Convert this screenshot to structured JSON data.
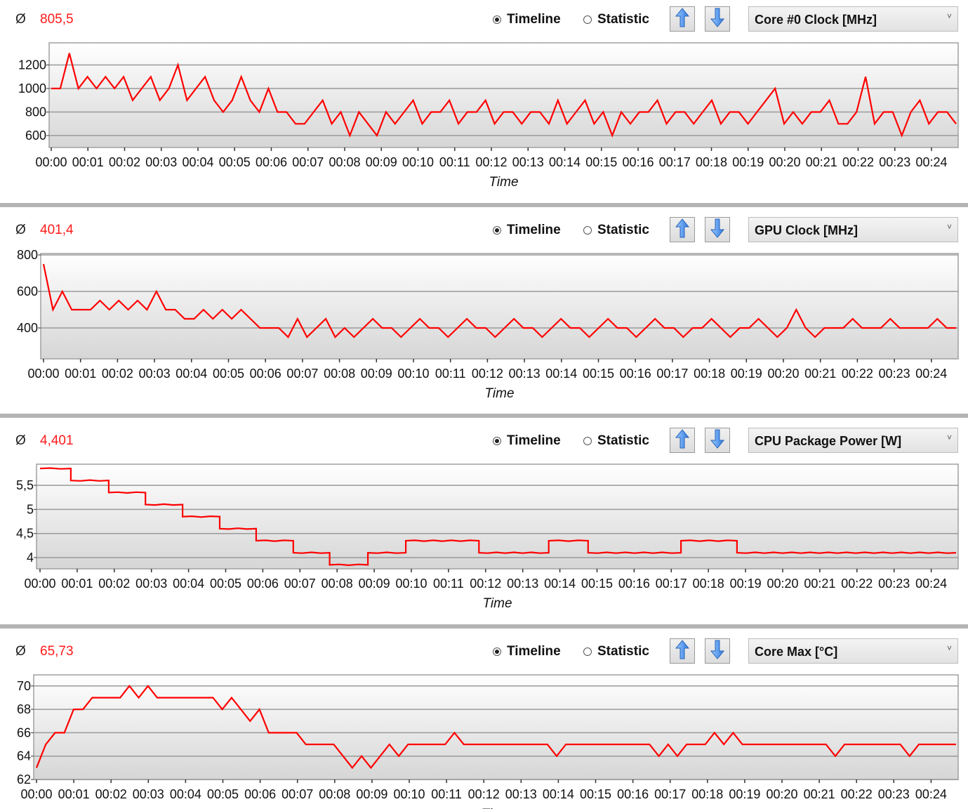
{
  "avg_symbol": "Ø",
  "radio_labels": {
    "timeline": "Timeline",
    "statistic": "Statistic"
  },
  "x_axis_title": "Time",
  "colors": {
    "series": "#ff0000",
    "average": "#ff1a1a",
    "separator": "#b4b4b4"
  },
  "panels": [
    {
      "average": "805,5",
      "mode": "Timeline",
      "sensor": "Core #0 Clock [MHz]"
    },
    {
      "average": "401,4",
      "mode": "Timeline",
      "sensor": "GPU Clock [MHz]"
    },
    {
      "average": "4,401",
      "mode": "Timeline",
      "sensor": "CPU Package Power [W]"
    },
    {
      "average": "65,73",
      "mode": "Timeline",
      "sensor": "Core Max [°C]"
    }
  ],
  "chart_data": [
    {
      "type": "line",
      "title": "Core #0 Clock [MHz]",
      "xlabel": "Time",
      "ylabel": "",
      "x_range_minutes": [
        0,
        24.67
      ],
      "yticks": [
        "600",
        "800",
        "1000",
        "1200"
      ],
      "ytick_values": [
        600,
        800,
        1000,
        1200
      ],
      "ylim": [
        505,
        1390
      ],
      "xticks": [
        "00:00",
        "00:01",
        "00:02",
        "00:03",
        "00:04",
        "00:05",
        "00:06",
        "00:07",
        "00:08",
        "00:09",
        "00:10",
        "00:11",
        "00:12",
        "00:13",
        "00:14",
        "00:15",
        "00:16",
        "00:17",
        "00:18",
        "00:19",
        "00:20",
        "00:21",
        "00:22",
        "00:23",
        "00:24"
      ],
      "values": [
        1000,
        1000,
        1300,
        1000,
        1100,
        1000,
        1100,
        1000,
        1100,
        900,
        1000,
        1100,
        900,
        1000,
        1200,
        900,
        1000,
        1100,
        900,
        800,
        900,
        1100,
        900,
        800,
        1000,
        800,
        800,
        700,
        700,
        800,
        900,
        700,
        800,
        600,
        800,
        700,
        600,
        800,
        700,
        800,
        900,
        700,
        800,
        800,
        900,
        700,
        800,
        800,
        900,
        700,
        800,
        800,
        700,
        800,
        800,
        700,
        900,
        700,
        800,
        900,
        700,
        800,
        600,
        800,
        700,
        800,
        800,
        900,
        700,
        800,
        800,
        700,
        800,
        900,
        700,
        800,
        800,
        700,
        800,
        900,
        1000,
        700,
        800,
        700,
        800,
        800,
        900,
        700,
        700,
        800,
        1100,
        700,
        800,
        800,
        600,
        800,
        900,
        700,
        800,
        800,
        700
      ]
    },
    {
      "type": "line",
      "title": "GPU Clock [MHz]",
      "xlabel": "Time",
      "ylabel": "",
      "x_range_minutes": [
        0,
        24.67
      ],
      "yticks": [
        "400",
        "600",
        "800"
      ],
      "ytick_values": [
        400,
        600,
        800
      ],
      "ylim": [
        231,
        808
      ],
      "xticks": [
        "00:00",
        "00:01",
        "00:02",
        "00:03",
        "00:04",
        "00:05",
        "00:06",
        "00:07",
        "00:08",
        "00:09",
        "00:10",
        "00:11",
        "00:12",
        "00:13",
        "00:14",
        "00:15",
        "00:16",
        "00:17",
        "00:18",
        "00:19",
        "00:20",
        "00:21",
        "00:22",
        "00:23",
        "00:24"
      ],
      "values": [
        750,
        500,
        600,
        500,
        500,
        500,
        550,
        500,
        550,
        500,
        550,
        500,
        600,
        500,
        500,
        450,
        450,
        500,
        450,
        500,
        450,
        500,
        450,
        400,
        400,
        400,
        350,
        450,
        350,
        400,
        450,
        350,
        400,
        350,
        400,
        450,
        400,
        400,
        350,
        400,
        450,
        400,
        400,
        350,
        400,
        450,
        400,
        400,
        350,
        400,
        450,
        400,
        400,
        350,
        400,
        450,
        400,
        400,
        350,
        400,
        450,
        400,
        400,
        350,
        400,
        450,
        400,
        400,
        350,
        400,
        400,
        450,
        400,
        350,
        400,
        400,
        450,
        400,
        350,
        400,
        500,
        400,
        350,
        400,
        400,
        400,
        450,
        400,
        400,
        400,
        450,
        400,
        400,
        400,
        400,
        450,
        400,
        400
      ]
    },
    {
      "type": "line",
      "title": "CPU Package Power [W]",
      "xlabel": "Time",
      "ylabel": "",
      "x_range_minutes": [
        0,
        24.67
      ],
      "yticks": [
        "4",
        "4,5",
        "5",
        "5,5"
      ],
      "ytick_values": [
        4,
        4.5,
        5,
        5.5
      ],
      "ylim": [
        3.77,
        5.94
      ],
      "xticks": [
        "00:00",
        "00:01",
        "00:02",
        "00:03",
        "00:04",
        "00:05",
        "00:06",
        "00:07",
        "00:08",
        "00:09",
        "00:10",
        "00:11",
        "00:12",
        "00:13",
        "00:14",
        "00:15",
        "00:16",
        "00:17",
        "00:18",
        "00:19",
        "00:20",
        "00:21",
        "00:22",
        "00:23",
        "00:24"
      ],
      "steps": [
        {
          "from": 0,
          "to": 0.83,
          "value": 5.85
        },
        {
          "from": 0.83,
          "to": 1.85,
          "value": 5.6
        },
        {
          "from": 1.85,
          "to": 2.84,
          "value": 5.35
        },
        {
          "from": 2.84,
          "to": 3.84,
          "value": 5.1
        },
        {
          "from": 3.84,
          "to": 4.84,
          "value": 4.85
        },
        {
          "from": 4.84,
          "to": 5.82,
          "value": 4.6
        },
        {
          "from": 5.82,
          "to": 6.82,
          "value": 4.35
        },
        {
          "from": 6.82,
          "to": 7.8,
          "value": 4.1
        },
        {
          "from": 7.8,
          "to": 8.83,
          "value": 3.85
        },
        {
          "from": 8.83,
          "to": 9.85,
          "value": 4.1
        },
        {
          "from": 9.85,
          "to": 11.82,
          "value": 4.35
        },
        {
          "from": 11.82,
          "to": 13.7,
          "value": 4.1
        },
        {
          "from": 13.7,
          "to": 14.76,
          "value": 4.35
        },
        {
          "from": 14.76,
          "to": 17.26,
          "value": 4.1
        },
        {
          "from": 17.26,
          "to": 18.77,
          "value": 4.35
        },
        {
          "from": 18.77,
          "to": 24.67,
          "value": 4.1
        }
      ]
    },
    {
      "type": "line",
      "title": "Core Max [°C]",
      "xlabel": "Time",
      "ylabel": "",
      "x_range_minutes": [
        0,
        24.67
      ],
      "yticks": [
        "62",
        "64",
        "66",
        "68",
        "70"
      ],
      "ytick_values": [
        62,
        64,
        66,
        68,
        70
      ],
      "ylim": [
        62,
        70.96
      ],
      "xticks": [
        "00:00",
        "00:01",
        "00:02",
        "00:03",
        "00:04",
        "00:05",
        "00:06",
        "00:07",
        "00:08",
        "00:09",
        "00:10",
        "00:11",
        "00:12",
        "00:13",
        "00:14",
        "00:15",
        "00:16",
        "00:17",
        "00:18",
        "00:19",
        "00:20",
        "00:21",
        "00:22",
        "00:23",
        "00:24"
      ],
      "values": [
        63,
        65,
        66,
        66,
        68,
        68,
        69,
        69,
        69,
        69,
        70,
        69,
        70,
        69,
        69,
        69,
        69,
        69,
        69,
        69,
        68,
        69,
        68,
        67,
        68,
        66,
        66,
        66,
        66,
        65,
        65,
        65,
        65,
        64,
        63,
        64,
        63,
        64,
        65,
        64,
        65,
        65,
        65,
        65,
        65,
        66,
        65,
        65,
        65,
        65,
        65,
        65,
        65,
        65,
        65,
        65,
        64,
        65,
        65,
        65,
        65,
        65,
        65,
        65,
        65,
        65,
        65,
        64,
        65,
        64,
        65,
        65,
        65,
        66,
        65,
        66,
        65,
        65,
        65,
        65,
        65,
        65,
        65,
        65,
        65,
        65,
        64,
        65,
        65,
        65,
        65,
        65,
        65,
        65,
        64,
        65,
        65,
        65,
        65,
        65
      ]
    }
  ]
}
